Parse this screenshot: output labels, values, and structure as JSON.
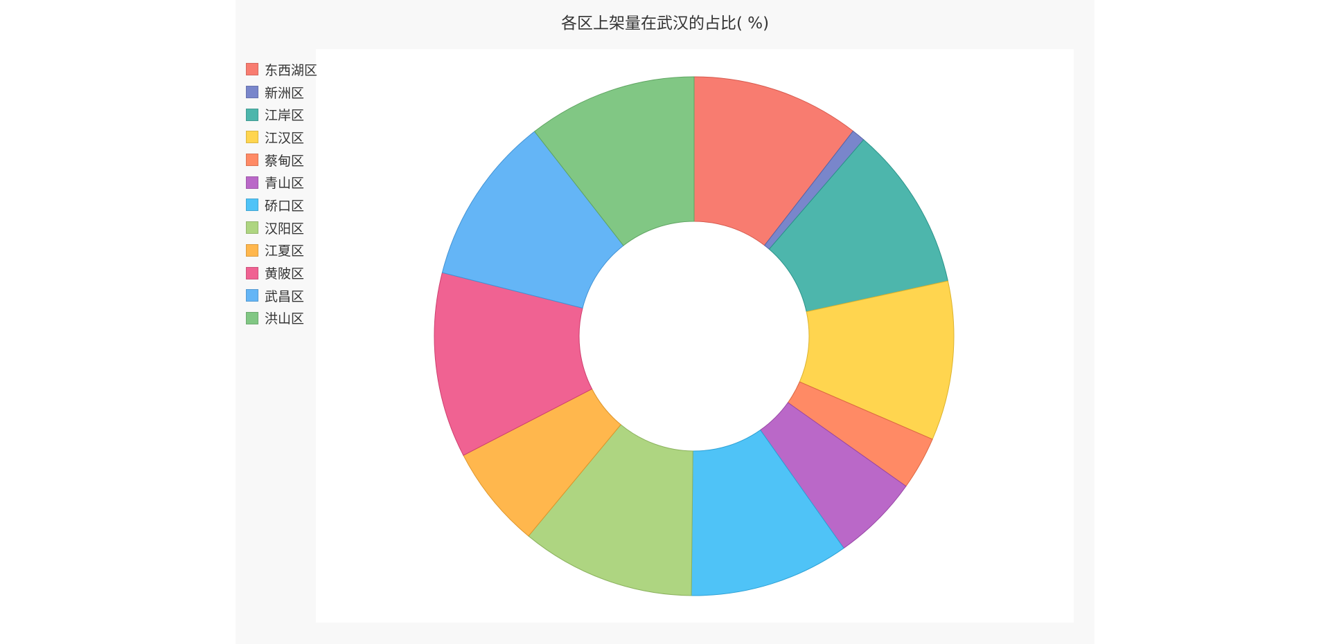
{
  "chart_data": {
    "type": "pie",
    "subtype": "donut",
    "title": "各区上架量在武汉的占比( %)",
    "legend_position": "left",
    "series": [
      {
        "name": "东西湖区",
        "value": 10.27,
        "color": "#f87c70"
      },
      {
        "name": "新洲区",
        "value": 0.82,
        "color": "#7986cb"
      },
      {
        "name": "江岸区",
        "value": 10.05,
        "color": "#4db6ac"
      },
      {
        "name": "江汉区",
        "value": 9.72,
        "color": "#ffd54f"
      },
      {
        "name": "蔡甸区",
        "value": 3.24,
        "color": "#ff8a65"
      },
      {
        "name": "青山区",
        "value": 5.3,
        "color": "#ba68c8"
      },
      {
        "name": "硚口区",
        "value": 9.74,
        "color": "#4fc3f7"
      },
      {
        "name": "汉阳区",
        "value": 10.61,
        "color": "#aed581"
      },
      {
        "name": "江夏区",
        "value": 6.27,
        "color": "#ffb74d"
      },
      {
        "name": "黄陂区",
        "value": 11.3,
        "color": "#f06292"
      },
      {
        "name": "武昌区",
        "value": 10.32,
        "color": "#64b5f6"
      },
      {
        "name": "洪山区",
        "value": 10.31,
        "color": "#81c784"
      }
    ]
  }
}
